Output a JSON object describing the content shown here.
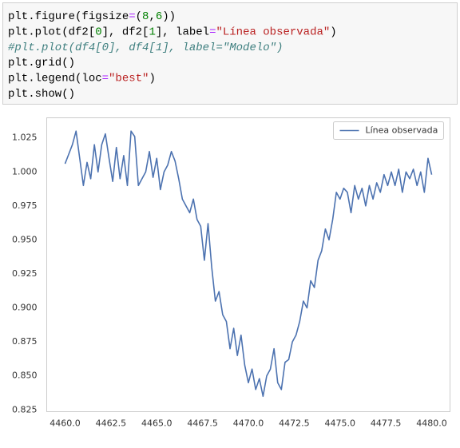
{
  "code": [
    [
      {
        "text": "plt.figure(figsize",
        "color": "#000000"
      },
      {
        "text": "=",
        "color": "#aa22ff"
      },
      {
        "text": "(",
        "color": "#000000"
      },
      {
        "text": "8",
        "color": "#008000"
      },
      {
        "text": ",",
        "color": "#000000"
      },
      {
        "text": "6",
        "color": "#008000"
      },
      {
        "text": "))",
        "color": "#000000"
      }
    ],
    [
      {
        "text": "plt.plot(df2[",
        "color": "#000000"
      },
      {
        "text": "0",
        "color": "#008000"
      },
      {
        "text": "], df2[",
        "color": "#000000"
      },
      {
        "text": "1",
        "color": "#008000"
      },
      {
        "text": "], label",
        "color": "#000000"
      },
      {
        "text": "=",
        "color": "#aa22ff"
      },
      {
        "text": "\"Línea observada\"",
        "color": "#ba2121"
      },
      {
        "text": ")",
        "color": "#000000"
      }
    ],
    [
      {
        "text": "#plt.plot(df4[0], df4[1], label=\"Modelo\")",
        "color": "#408080",
        "style": "italic"
      }
    ],
    [
      {
        "text": "plt.grid()",
        "color": "#000000"
      }
    ],
    [
      {
        "text": "plt.legend(loc",
        "color": "#000000"
      },
      {
        "text": "=",
        "color": "#aa22ff"
      },
      {
        "text": "\"best\"",
        "color": "#ba2121"
      },
      {
        "text": ")",
        "color": "#000000"
      }
    ],
    [
      {
        "text": "plt.show()",
        "color": "#000000"
      }
    ]
  ],
  "chart_data": {
    "type": "line",
    "grid": false,
    "legend": "upper right",
    "x": [
      4460.0,
      4460.2,
      4460.4,
      4460.6,
      4460.8,
      4461.0,
      4461.2,
      4461.4,
      4461.6,
      4461.8,
      4462.0,
      4462.2,
      4462.4,
      4462.6,
      4462.8,
      4463.0,
      4463.2,
      4463.4,
      4463.6,
      4463.8,
      4464.0,
      4464.2,
      4464.4,
      4464.6,
      4464.8,
      4465.0,
      4465.2,
      4465.4,
      4465.6,
      4465.8,
      4466.0,
      4466.2,
      4466.4,
      4466.6,
      4466.8,
      4467.0,
      4467.2,
      4467.4,
      4467.6,
      4467.8,
      4468.0,
      4468.2,
      4468.4,
      4468.6,
      4468.8,
      4469.0,
      4469.2,
      4469.4,
      4469.6,
      4469.8,
      4470.0,
      4470.2,
      4470.4,
      4470.6,
      4470.8,
      4471.0,
      4471.2,
      4471.4,
      4471.6,
      4471.8,
      4472.0,
      4472.2,
      4472.4,
      4472.6,
      4472.8,
      4473.0,
      4473.2,
      4473.4,
      4473.6,
      4473.8,
      4474.0,
      4474.2,
      4474.4,
      4474.6,
      4474.8,
      4475.0,
      4475.2,
      4475.4,
      4475.6,
      4475.8,
      4476.0,
      4476.2,
      4476.4,
      4476.6,
      4476.8,
      4477.0,
      4477.2,
      4477.4,
      4477.6,
      4477.8,
      4478.0,
      4478.2,
      4478.4,
      4478.6,
      4478.8,
      4479.0,
      4479.2,
      4479.4,
      4479.6,
      4479.8,
      4480.0
    ],
    "series": [
      {
        "name": "Línea observada",
        "color": "#4c72b0",
        "values": [
          1.006,
          1.013,
          1.02,
          1.03,
          1.01,
          0.99,
          1.007,
          0.995,
          1.02,
          1.0,
          1.02,
          1.028,
          1.01,
          0.993,
          1.018,
          0.995,
          1.012,
          0.99,
          1.03,
          1.026,
          0.99,
          0.995,
          1.0,
          1.015,
          0.996,
          1.01,
          0.987,
          1.0,
          1.005,
          1.015,
          1.008,
          0.995,
          0.98,
          0.975,
          0.97,
          0.98,
          0.965,
          0.96,
          0.935,
          0.962,
          0.93,
          0.905,
          0.912,
          0.895,
          0.89,
          0.87,
          0.885,
          0.865,
          0.88,
          0.858,
          0.845,
          0.855,
          0.84,
          0.848,
          0.835,
          0.85,
          0.855,
          0.87,
          0.845,
          0.84,
          0.86,
          0.862,
          0.875,
          0.88,
          0.89,
          0.905,
          0.9,
          0.92,
          0.915,
          0.935,
          0.942,
          0.958,
          0.95,
          0.965,
          0.985,
          0.98,
          0.988,
          0.985,
          0.97,
          0.99,
          0.98,
          0.988,
          0.975,
          0.99,
          0.98,
          0.992,
          0.985,
          0.998,
          0.99,
          1.0,
          0.99,
          1.002,
          0.985,
          1.0,
          0.995,
          1.002,
          0.99,
          1.0,
          0.985,
          1.01,
          0.998
        ]
      }
    ],
    "xlim": [
      4459.0,
      4481.0
    ],
    "xticks": [
      {
        "value": 4460,
        "label": "4460.0"
      },
      4462.5,
      {
        "value": 4465,
        "label": "4465.0"
      },
      4467.5,
      {
        "value": 4470,
        "label": "4470.0"
      },
      4472.5,
      {
        "value": 4475,
        "label": "4475.0"
      },
      4477.5,
      {
        "value": 4480,
        "label": "4480.0"
      }
    ],
    "ylim": [
      0.8237,
      1.0398
    ],
    "yticks": [
      0.825,
      {
        "value": 0.85,
        "label": "0.850"
      },
      0.875,
      {
        "value": 0.9,
        "label": "0.900"
      },
      0.925,
      {
        "value": 0.95,
        "label": "0.950"
      },
      0.975,
      {
        "value": 1,
        "label": "1.000"
      },
      1.025
    ]
  }
}
